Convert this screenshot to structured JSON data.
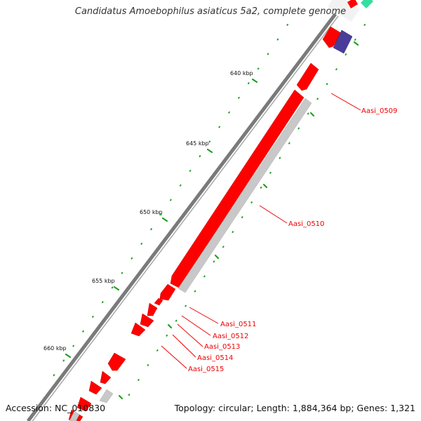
{
  "title": "Candidatus Amoebophilus asiaticus 5a2, complete genome",
  "footer": {
    "accession": "Accession: NC_010830",
    "summary": "Topology: circular; Length: 1,884,364 bp; Genes: 1,321"
  },
  "colors": {
    "gene_feature": "#ff0000",
    "other_feature": "#c8c8c8",
    "blue_feature": "#4a3d9a",
    "green_feature": "#33e0a0",
    "backbone": "#777777",
    "tick": "#22a022",
    "label": "#ee0000"
  },
  "kbp_ticks": [
    "640 kbp",
    "645 kbp",
    "650 kbp",
    "655 kbp",
    "660 kbp"
  ],
  "gene_labels": [
    "Aasi_0509",
    "Aasi_0510",
    "Aasi_0511",
    "Aasi_0512",
    "Aasi_0513",
    "Aasi_0514",
    "Aasi_0515"
  ]
}
